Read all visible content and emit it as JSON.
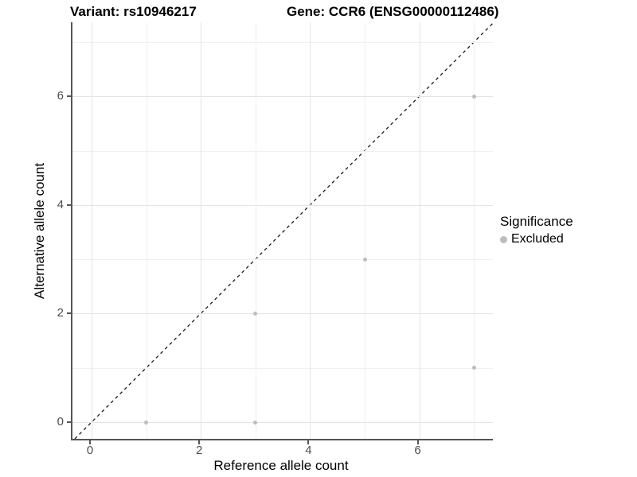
{
  "chart_data": {
    "type": "scatter",
    "title_left": "Variant: rs10946217",
    "title_right": "Gene: CCR6 (ENSG00000112486)",
    "xlabel": "Reference allele count",
    "ylabel": "Alternative allele count",
    "xlim": [
      -0.35,
      7.35
    ],
    "ylim": [
      -0.35,
      7.35
    ],
    "x_major_ticks": [
      0,
      2,
      4,
      6
    ],
    "x_minor_ticks": [
      1,
      3,
      5,
      7
    ],
    "y_major_ticks": [
      0,
      2,
      4,
      6
    ],
    "y_minor_ticks": [
      1,
      3,
      5,
      7
    ],
    "grid": true,
    "identity_line": {
      "style": "dashed",
      "color": "#1a1a1a",
      "equation": "y = x"
    },
    "series": [
      {
        "name": "Excluded",
        "color": "#bdbdbd",
        "points": [
          [
            1,
            0
          ],
          [
            3,
            0
          ],
          [
            3,
            2
          ],
          [
            5,
            3
          ],
          [
            7,
            1
          ],
          [
            7,
            6
          ]
        ]
      }
    ],
    "legend": {
      "title": "Significance",
      "position": "right",
      "items": [
        {
          "label": "Excluded",
          "color": "#bdbdbd"
        }
      ]
    }
  }
}
